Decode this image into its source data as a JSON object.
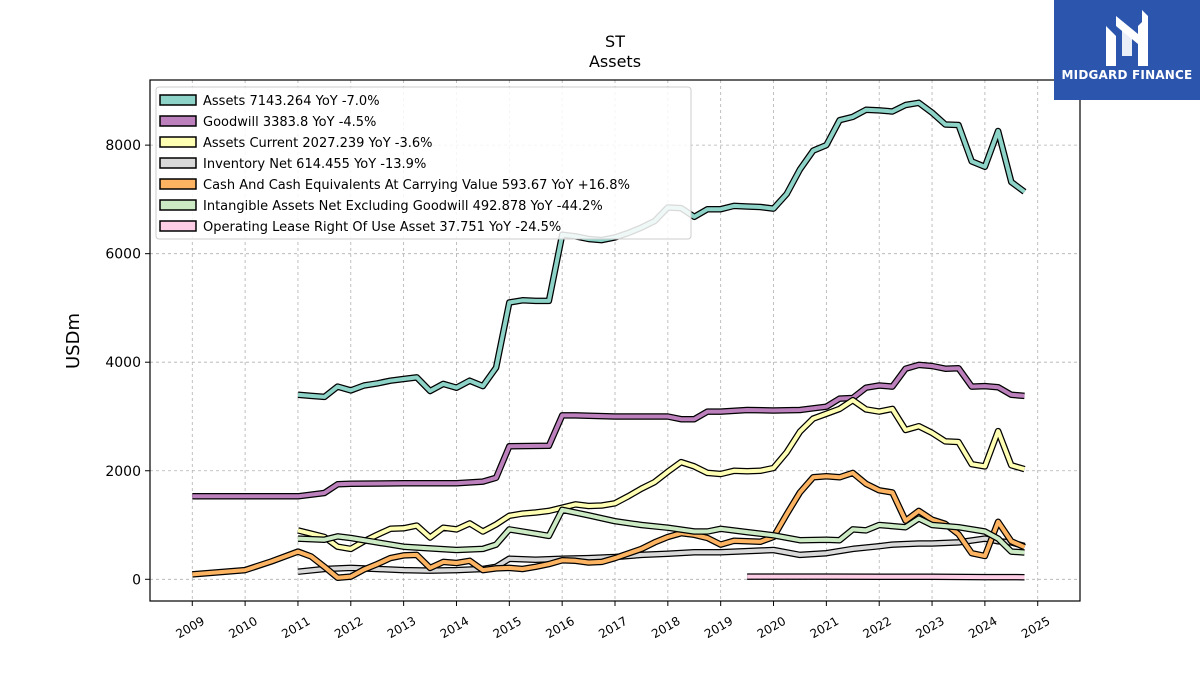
{
  "chart_data": {
    "type": "line",
    "title": "ST",
    "subtitle": "Assets",
    "ylabel": "USDm",
    "ylim": [
      -400,
      9200
    ],
    "xlim": [
      2008.2,
      2025.8
    ],
    "y_ticks": [
      0,
      2000,
      4000,
      6000,
      8000
    ],
    "x_ticks": [
      "2009",
      "2010",
      "2011",
      "2012",
      "2013",
      "2014",
      "2015",
      "2016",
      "2017",
      "2018",
      "2019",
      "2020",
      "2021",
      "2022",
      "2023",
      "2024",
      "2025"
    ],
    "grid": true,
    "legend_position": "top-left",
    "series": [
      {
        "name": "Assets",
        "legend": "Assets  7143.264 YoY -7.0%",
        "color": "#8dd3c7",
        "points": [
          [
            2011.0,
            3400
          ],
          [
            2011.25,
            3380
          ],
          [
            2011.5,
            3360
          ],
          [
            2011.75,
            3550
          ],
          [
            2012.0,
            3480
          ],
          [
            2012.25,
            3570
          ],
          [
            2012.5,
            3610
          ],
          [
            2012.75,
            3660
          ],
          [
            2013.0,
            3690
          ],
          [
            2013.25,
            3720
          ],
          [
            2013.5,
            3470
          ],
          [
            2013.75,
            3600
          ],
          [
            2014.0,
            3530
          ],
          [
            2014.25,
            3660
          ],
          [
            2014.5,
            3560
          ],
          [
            2014.75,
            3900
          ],
          [
            2015.0,
            5100
          ],
          [
            2015.25,
            5140
          ],
          [
            2015.5,
            5130
          ],
          [
            2015.75,
            5130
          ],
          [
            2016.0,
            6350
          ],
          [
            2016.25,
            6320
          ],
          [
            2016.5,
            6270
          ],
          [
            2016.75,
            6250
          ],
          [
            2017.0,
            6300
          ],
          [
            2017.25,
            6380
          ],
          [
            2017.5,
            6480
          ],
          [
            2017.75,
            6600
          ],
          [
            2018.0,
            6850
          ],
          [
            2018.25,
            6840
          ],
          [
            2018.5,
            6680
          ],
          [
            2018.75,
            6820
          ],
          [
            2019.0,
            6820
          ],
          [
            2019.25,
            6880
          ],
          [
            2019.5,
            6870
          ],
          [
            2019.75,
            6860
          ],
          [
            2020.0,
            6830
          ],
          [
            2020.25,
            7100
          ],
          [
            2020.5,
            7550
          ],
          [
            2020.75,
            7900
          ],
          [
            2021.0,
            8000
          ],
          [
            2021.25,
            8460
          ],
          [
            2021.5,
            8520
          ],
          [
            2021.75,
            8650
          ],
          [
            2022.0,
            8640
          ],
          [
            2022.25,
            8620
          ],
          [
            2022.5,
            8740
          ],
          [
            2022.75,
            8780
          ],
          [
            2023.0,
            8600
          ],
          [
            2023.25,
            8380
          ],
          [
            2023.5,
            8370
          ],
          [
            2023.75,
            7700
          ],
          [
            2024.0,
            7600
          ],
          [
            2024.25,
            8260
          ],
          [
            2024.5,
            7320
          ],
          [
            2024.75,
            7140
          ]
        ]
      },
      {
        "name": "Goodwill",
        "legend": "Goodwill  3383.8 YoY -4.5%",
        "color": "#bc80bd",
        "points": [
          [
            2009.0,
            1530
          ],
          [
            2010.0,
            1530
          ],
          [
            2011.0,
            1530
          ],
          [
            2011.5,
            1590
          ],
          [
            2011.75,
            1750
          ],
          [
            2012.0,
            1760
          ],
          [
            2013.0,
            1770
          ],
          [
            2014.0,
            1770
          ],
          [
            2014.5,
            1800
          ],
          [
            2014.75,
            1870
          ],
          [
            2015.0,
            2450
          ],
          [
            2015.75,
            2460
          ],
          [
            2016.0,
            3020
          ],
          [
            2016.25,
            3020
          ],
          [
            2017.0,
            3000
          ],
          [
            2018.0,
            3000
          ],
          [
            2018.25,
            2950
          ],
          [
            2018.5,
            2950
          ],
          [
            2018.75,
            3090
          ],
          [
            2019.0,
            3090
          ],
          [
            2019.5,
            3120
          ],
          [
            2020.0,
            3110
          ],
          [
            2020.5,
            3120
          ],
          [
            2020.75,
            3150
          ],
          [
            2021.0,
            3180
          ],
          [
            2021.25,
            3330
          ],
          [
            2021.5,
            3340
          ],
          [
            2021.75,
            3530
          ],
          [
            2022.0,
            3570
          ],
          [
            2022.25,
            3550
          ],
          [
            2022.5,
            3880
          ],
          [
            2022.75,
            3950
          ],
          [
            2023.0,
            3930
          ],
          [
            2023.25,
            3880
          ],
          [
            2023.5,
            3890
          ],
          [
            2023.75,
            3550
          ],
          [
            2024.0,
            3560
          ],
          [
            2024.25,
            3540
          ],
          [
            2024.5,
            3400
          ],
          [
            2024.75,
            3380
          ]
        ]
      },
      {
        "name": "Assets Current",
        "legend": "Assets Current  2027.239 YoY -3.6%",
        "color": "#ffffb3",
        "points": [
          [
            2011.0,
            900
          ],
          [
            2011.25,
            840
          ],
          [
            2011.5,
            780
          ],
          [
            2011.75,
            600
          ],
          [
            2012.0,
            560
          ],
          [
            2012.25,
            700
          ],
          [
            2012.5,
            820
          ],
          [
            2012.75,
            930
          ],
          [
            2013.0,
            940
          ],
          [
            2013.25,
            990
          ],
          [
            2013.5,
            770
          ],
          [
            2013.75,
            950
          ],
          [
            2014.0,
            920
          ],
          [
            2014.25,
            1030
          ],
          [
            2014.5,
            880
          ],
          [
            2014.75,
            1010
          ],
          [
            2015.0,
            1170
          ],
          [
            2015.25,
            1210
          ],
          [
            2015.5,
            1230
          ],
          [
            2015.75,
            1260
          ],
          [
            2016.0,
            1320
          ],
          [
            2016.25,
            1380
          ],
          [
            2016.5,
            1350
          ],
          [
            2016.75,
            1360
          ],
          [
            2017.0,
            1400
          ],
          [
            2017.25,
            1530
          ],
          [
            2017.5,
            1670
          ],
          [
            2017.75,
            1790
          ],
          [
            2018.0,
            1980
          ],
          [
            2018.25,
            2160
          ],
          [
            2018.5,
            2080
          ],
          [
            2018.75,
            1960
          ],
          [
            2019.0,
            1940
          ],
          [
            2019.25,
            2000
          ],
          [
            2019.5,
            1990
          ],
          [
            2019.75,
            2000
          ],
          [
            2020.0,
            2050
          ],
          [
            2020.25,
            2340
          ],
          [
            2020.5,
            2720
          ],
          [
            2020.75,
            2960
          ],
          [
            2021.0,
            3050
          ],
          [
            2021.25,
            3140
          ],
          [
            2021.5,
            3300
          ],
          [
            2021.75,
            3130
          ],
          [
            2022.0,
            3090
          ],
          [
            2022.25,
            3140
          ],
          [
            2022.5,
            2750
          ],
          [
            2022.75,
            2820
          ],
          [
            2023.0,
            2700
          ],
          [
            2023.25,
            2540
          ],
          [
            2023.5,
            2530
          ],
          [
            2023.75,
            2120
          ],
          [
            2024.0,
            2080
          ],
          [
            2024.25,
            2730
          ],
          [
            2024.5,
            2100
          ],
          [
            2024.75,
            2030
          ]
        ]
      },
      {
        "name": "Inventory Net",
        "legend": "Inventory Net  614.455 YoY -13.9%",
        "color": "#d9d9d9",
        "points": [
          [
            2011.0,
            140
          ],
          [
            2011.5,
            190
          ],
          [
            2012.0,
            210
          ],
          [
            2012.5,
            190
          ],
          [
            2013.0,
            170
          ],
          [
            2013.5,
            160
          ],
          [
            2014.0,
            170
          ],
          [
            2014.5,
            190
          ],
          [
            2014.75,
            230
          ],
          [
            2015.0,
            380
          ],
          [
            2015.5,
            360
          ],
          [
            2016.0,
            380
          ],
          [
            2016.5,
            390
          ],
          [
            2017.0,
            410
          ],
          [
            2017.5,
            450
          ],
          [
            2018.0,
            470
          ],
          [
            2018.5,
            500
          ],
          [
            2019.0,
            500
          ],
          [
            2019.5,
            520
          ],
          [
            2020.0,
            540
          ],
          [
            2020.5,
            450
          ],
          [
            2021.0,
            480
          ],
          [
            2021.5,
            560
          ],
          [
            2022.0,
            610
          ],
          [
            2022.25,
            640
          ],
          [
            2022.75,
            660
          ],
          [
            2023.0,
            660
          ],
          [
            2023.5,
            680
          ],
          [
            2024.0,
            750
          ],
          [
            2024.25,
            700
          ],
          [
            2024.5,
            680
          ],
          [
            2024.75,
            614
          ]
        ]
      },
      {
        "name": "Cash And Cash Equivalents At Carrying Value",
        "legend": "Cash And Cash Equivalents At Carrying Value  593.67 YoY +16.8%",
        "color": "#fdb462",
        "points": [
          [
            2009.0,
            90
          ],
          [
            2010.0,
            170
          ],
          [
            2010.5,
            330
          ],
          [
            2011.0,
            510
          ],
          [
            2011.25,
            420
          ],
          [
            2011.5,
            230
          ],
          [
            2011.75,
            30
          ],
          [
            2012.0,
            50
          ],
          [
            2012.25,
            180
          ],
          [
            2012.5,
            280
          ],
          [
            2012.75,
            390
          ],
          [
            2013.0,
            440
          ],
          [
            2013.25,
            450
          ],
          [
            2013.5,
            210
          ],
          [
            2013.75,
            320
          ],
          [
            2014.0,
            300
          ],
          [
            2014.25,
            340
          ],
          [
            2014.5,
            170
          ],
          [
            2014.75,
            200
          ],
          [
            2015.0,
            210
          ],
          [
            2015.25,
            190
          ],
          [
            2015.5,
            230
          ],
          [
            2015.75,
            280
          ],
          [
            2016.0,
            350
          ],
          [
            2016.25,
            340
          ],
          [
            2016.5,
            310
          ],
          [
            2016.75,
            320
          ],
          [
            2017.0,
            390
          ],
          [
            2017.5,
            560
          ],
          [
            2017.75,
            680
          ],
          [
            2018.0,
            780
          ],
          [
            2018.25,
            850
          ],
          [
            2018.5,
            820
          ],
          [
            2018.75,
            760
          ],
          [
            2019.0,
            640
          ],
          [
            2019.25,
            710
          ],
          [
            2019.5,
            700
          ],
          [
            2019.75,
            690
          ],
          [
            2020.0,
            780
          ],
          [
            2020.25,
            1200
          ],
          [
            2020.5,
            1600
          ],
          [
            2020.75,
            1880
          ],
          [
            2021.0,
            1900
          ],
          [
            2021.25,
            1880
          ],
          [
            2021.5,
            1960
          ],
          [
            2021.75,
            1760
          ],
          [
            2022.0,
            1640
          ],
          [
            2022.25,
            1600
          ],
          [
            2022.5,
            1080
          ],
          [
            2022.75,
            1260
          ],
          [
            2023.0,
            1100
          ],
          [
            2023.25,
            1020
          ],
          [
            2023.5,
            830
          ],
          [
            2023.75,
            480
          ],
          [
            2024.0,
            430
          ],
          [
            2024.25,
            1060
          ],
          [
            2024.5,
            700
          ],
          [
            2024.75,
            594
          ]
        ]
      },
      {
        "name": "Intangible Assets Net Excluding Goodwill",
        "legend": "Intangible Assets Net Excluding Goodwill  492.878 YoY -44.2%",
        "color": "#ccebc5",
        "points": [
          [
            2011.0,
            750
          ],
          [
            2011.5,
            730
          ],
          [
            2011.75,
            790
          ],
          [
            2012.0,
            760
          ],
          [
            2012.5,
            680
          ],
          [
            2013.0,
            600
          ],
          [
            2013.5,
            570
          ],
          [
            2014.0,
            540
          ],
          [
            2014.5,
            560
          ],
          [
            2014.75,
            640
          ],
          [
            2015.0,
            920
          ],
          [
            2015.5,
            840
          ],
          [
            2015.75,
            800
          ],
          [
            2016.0,
            1280
          ],
          [
            2016.5,
            1180
          ],
          [
            2017.0,
            1070
          ],
          [
            2017.5,
            1000
          ],
          [
            2018.0,
            950
          ],
          [
            2018.5,
            880
          ],
          [
            2018.75,
            880
          ],
          [
            2019.0,
            930
          ],
          [
            2019.5,
            870
          ],
          [
            2020.0,
            810
          ],
          [
            2020.5,
            720
          ],
          [
            2021.0,
            730
          ],
          [
            2021.25,
            720
          ],
          [
            2021.5,
            920
          ],
          [
            2021.75,
            900
          ],
          [
            2022.0,
            1000
          ],
          [
            2022.25,
            980
          ],
          [
            2022.5,
            960
          ],
          [
            2022.75,
            1120
          ],
          [
            2023.0,
            1000
          ],
          [
            2023.5,
            960
          ],
          [
            2024.0,
            880
          ],
          [
            2024.25,
            750
          ],
          [
            2024.5,
            510
          ],
          [
            2024.75,
            493
          ]
        ]
      },
      {
        "name": "Operating Lease Right Of Use Asset",
        "legend": "Operating Lease Right Of Use Asset  37.751 YoY -24.5%",
        "color": "#fccde5",
        "points": [
          [
            2019.5,
            50
          ],
          [
            2020.0,
            50
          ],
          [
            2021.0,
            50
          ],
          [
            2022.0,
            48
          ],
          [
            2023.0,
            45
          ],
          [
            2024.0,
            40
          ],
          [
            2024.75,
            38
          ]
        ]
      }
    ]
  },
  "branding": {
    "name": "MIDGARD FINANCE",
    "background": "#2c56ad"
  }
}
